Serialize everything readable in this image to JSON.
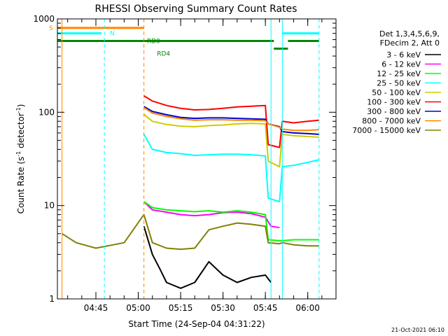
{
  "chart_data": {
    "type": "line",
    "title": "RHESSI Observing Summary Count Rates",
    "xlabel": "Start Time (24-Sep-04 04:31:22)",
    "ylabel_main": "Count Rate (s",
    "ylabel_sup1": "-1",
    "ylabel_mid": " detector",
    "ylabel_sup2": "-1",
    "ylabel_end": ")",
    "yscale": "log",
    "xlim": [
      "04:31:22",
      "06:10:00"
    ],
    "ylim": [
      1,
      1000
    ],
    "x_ticks": [
      "04:45",
      "05:00",
      "05:15",
      "05:30",
      "05:45",
      "06:00"
    ],
    "y_ticks": [
      "1",
      "10",
      "100",
      "1000"
    ],
    "legend": {
      "placement": "right",
      "header": [
        "Det 1,3,4,5,6,9,",
        "FDecim 2, Att 0"
      ],
      "entries": [
        {
          "label": "3 - 6 keV",
          "color": "#000000"
        },
        {
          "label": "6 - 12 keV",
          "color": "#ff00ff"
        },
        {
          "label": "12 - 25 keV",
          "color": "#00ff00"
        },
        {
          "label": "25 - 50 keV",
          "color": "#00ffff"
        },
        {
          "label": "50 - 100 keV",
          "color": "#cccc00"
        },
        {
          "label": "100 - 300 keV",
          "color": "#ff0000"
        },
        {
          "label": "300 - 800 keV",
          "color": "#0000cc"
        },
        {
          "label": "800 - 7000 keV",
          "color": "#ff8800"
        },
        {
          "label": "7000 - 15000 keV",
          "color": "#808000"
        }
      ]
    },
    "series": [
      {
        "name": "3 - 6 keV",
        "color": "#000000",
        "points": [
          [
            "05:02",
            6
          ],
          [
            "05:05",
            3
          ],
          [
            "05:08",
            2
          ],
          [
            "05:10",
            1.5
          ],
          [
            "05:15",
            1.3
          ],
          [
            "05:20",
            1.5
          ],
          [
            "05:25",
            2.5
          ],
          [
            "05:30",
            1.8
          ],
          [
            "05:35",
            1.5
          ],
          [
            "05:40",
            1.7
          ],
          [
            "05:45",
            1.8
          ],
          [
            "05:47",
            1.5
          ]
        ]
      },
      {
        "name": "6 - 12 keV",
        "color": "#ff00ff",
        "points": [
          [
            "05:02",
            11
          ],
          [
            "05:05",
            9
          ],
          [
            "05:10",
            8.5
          ],
          [
            "05:15",
            8
          ],
          [
            "05:20",
            7.8
          ],
          [
            "05:25",
            8
          ],
          [
            "05:30",
            8.4
          ],
          [
            "05:35",
            8.5
          ],
          [
            "05:40",
            8.2
          ],
          [
            "05:45",
            7.5
          ],
          [
            "05:47",
            6
          ],
          [
            "05:50",
            5.8
          ]
        ]
      },
      {
        "name": "12 - 25 keV",
        "color": "#00ff00",
        "points": [
          [
            "05:02",
            11
          ],
          [
            "05:05",
            9.5
          ],
          [
            "05:10",
            9
          ],
          [
            "05:15",
            8.8
          ],
          [
            "05:20",
            8.6
          ],
          [
            "05:25",
            8.8
          ],
          [
            "05:30",
            8.5
          ],
          [
            "05:35",
            8.8
          ],
          [
            "05:40",
            8.5
          ],
          [
            "05:45",
            8
          ],
          [
            "05:46",
            4.3
          ],
          [
            "05:50",
            4.2
          ],
          [
            "05:51",
            4.2
          ],
          [
            "05:55",
            4.3
          ],
          [
            "06:00",
            4.3
          ],
          [
            "06:04",
            4.3
          ]
        ]
      },
      {
        "name": "25 - 50 keV",
        "color": "#00ffff",
        "points": [
          [
            "05:02",
            58
          ],
          [
            "05:05",
            40
          ],
          [
            "05:10",
            37
          ],
          [
            "05:15",
            36
          ],
          [
            "05:20",
            34.5
          ],
          [
            "05:25",
            35
          ],
          [
            "05:30",
            35.5
          ],
          [
            "05:35",
            35.5
          ],
          [
            "05:40",
            35
          ],
          [
            "05:45",
            34
          ],
          [
            "05:46",
            12
          ],
          [
            "05:50",
            11
          ],
          [
            "05:51",
            26
          ],
          [
            "05:55",
            27
          ],
          [
            "06:00",
            29
          ],
          [
            "06:04",
            31
          ]
        ]
      },
      {
        "name": "50 - 100 keV",
        "color": "#cccc00",
        "points": [
          [
            "05:02",
            95
          ],
          [
            "05:05",
            80
          ],
          [
            "05:10",
            74
          ],
          [
            "05:15",
            71
          ],
          [
            "05:20",
            70
          ],
          [
            "05:25",
            72
          ],
          [
            "05:30",
            73
          ],
          [
            "05:35",
            75
          ],
          [
            "05:40",
            76
          ],
          [
            "05:45",
            75
          ],
          [
            "05:46",
            30
          ],
          [
            "05:50",
            26
          ],
          [
            "05:51",
            58
          ],
          [
            "05:55",
            56
          ],
          [
            "06:00",
            55
          ],
          [
            "06:04",
            54
          ]
        ]
      },
      {
        "name": "100 - 300 keV",
        "color": "#ff0000",
        "points": [
          [
            "05:02",
            150
          ],
          [
            "05:05",
            132
          ],
          [
            "05:10",
            118
          ],
          [
            "05:15",
            110
          ],
          [
            "05:20",
            106
          ],
          [
            "05:25",
            107
          ],
          [
            "05:30",
            110
          ],
          [
            "05:35",
            114
          ],
          [
            "05:40",
            116
          ],
          [
            "05:45",
            118
          ],
          [
            "05:46",
            45
          ],
          [
            "05:50",
            42
          ],
          [
            "05:51",
            80
          ],
          [
            "05:55",
            77
          ],
          [
            "06:00",
            80
          ],
          [
            "06:04",
            82
          ]
        ]
      },
      {
        "name": "300 - 800 keV",
        "color": "#0000cc",
        "points": [
          [
            "05:02",
            115
          ],
          [
            "05:05",
            102
          ],
          [
            "05:10",
            94
          ],
          [
            "05:15",
            88
          ],
          [
            "05:20",
            86
          ],
          [
            "05:25",
            87
          ],
          [
            "05:30",
            87
          ],
          [
            "05:35",
            86
          ],
          [
            "05:40",
            85
          ],
          [
            "05:45",
            84
          ],
          [
            "05:46",
            75
          ],
          [
            "05:50",
            70
          ],
          [
            "05:51",
            62
          ],
          [
            "05:55",
            60
          ],
          [
            "06:00",
            59
          ],
          [
            "06:04",
            58
          ]
        ]
      },
      {
        "name": "800 - 7000 keV",
        "color": "#ff8800",
        "points": [
          [
            "05:02",
            112
          ],
          [
            "05:05",
            98
          ],
          [
            "05:10",
            90
          ],
          [
            "05:15",
            85
          ],
          [
            "05:20",
            82
          ],
          [
            "05:25",
            83
          ],
          [
            "05:30",
            83
          ],
          [
            "05:35",
            82
          ],
          [
            "05:40",
            82
          ],
          [
            "05:45",
            81
          ],
          [
            "05:46",
            75
          ],
          [
            "05:50",
            69
          ],
          [
            "05:51",
            66
          ],
          [
            "05:55",
            64
          ],
          [
            "06:00",
            64
          ],
          [
            "06:04",
            65
          ]
        ]
      },
      {
        "name": "7000 - 15000 keV",
        "color": "#808000",
        "points": [
          [
            "04:33",
            5
          ],
          [
            "04:38",
            4
          ],
          [
            "04:45",
            3.5
          ],
          [
            "04:55",
            4
          ],
          [
            "05:02",
            8
          ],
          [
            "05:05",
            4
          ],
          [
            "05:10",
            3.5
          ],
          [
            "05:15",
            3.4
          ],
          [
            "05:20",
            3.5
          ],
          [
            "05:25",
            5.5
          ],
          [
            "05:30",
            6
          ],
          [
            "05:35",
            6.5
          ],
          [
            "05:40",
            6.3
          ],
          [
            "05:45",
            6
          ],
          [
            "05:46",
            4
          ],
          [
            "05:50",
            3.9
          ],
          [
            "05:51",
            4
          ],
          [
            "05:55",
            3.8
          ],
          [
            "06:00",
            3.7
          ],
          [
            "06:04",
            3.7
          ]
        ]
      }
    ],
    "flags": [
      {
        "label": "S",
        "color": "#ff8800",
        "y": 800,
        "segments": [
          [
            "04:31:22",
            "05:02"
          ]
        ]
      },
      {
        "label": "N",
        "color": "#00ffff",
        "y": 700,
        "segments": [
          [
            "04:31:22",
            "04:47"
          ],
          [
            "05:51",
            "06:04"
          ]
        ]
      },
      {
        "label": "RD0",
        "color": "#008800",
        "y": 580,
        "segments": [
          [
            "04:31:22",
            "05:48"
          ],
          [
            "05:53",
            "06:04"
          ]
        ]
      },
      {
        "label": "RD4",
        "color": "#008800",
        "y": 480,
        "segments": [
          [
            "05:48",
            "05:53"
          ]
        ]
      }
    ],
    "vlines": [
      {
        "time": "04:33",
        "color": "#ff8800",
        "dashed": false
      },
      {
        "time": "04:48",
        "color": "#00ffff",
        "dashed": true
      },
      {
        "time": "05:02",
        "color": "#ff8800",
        "dashed": true
      },
      {
        "time": "05:47",
        "color": "#00ffff",
        "dashed": false
      },
      {
        "time": "05:51",
        "color": "#00ffff",
        "dashed": false
      },
      {
        "time": "06:04",
        "color": "#00ffff",
        "dashed": true
      }
    ]
  },
  "footer": {
    "timestamp": "21-Oct-2021 06:10"
  }
}
